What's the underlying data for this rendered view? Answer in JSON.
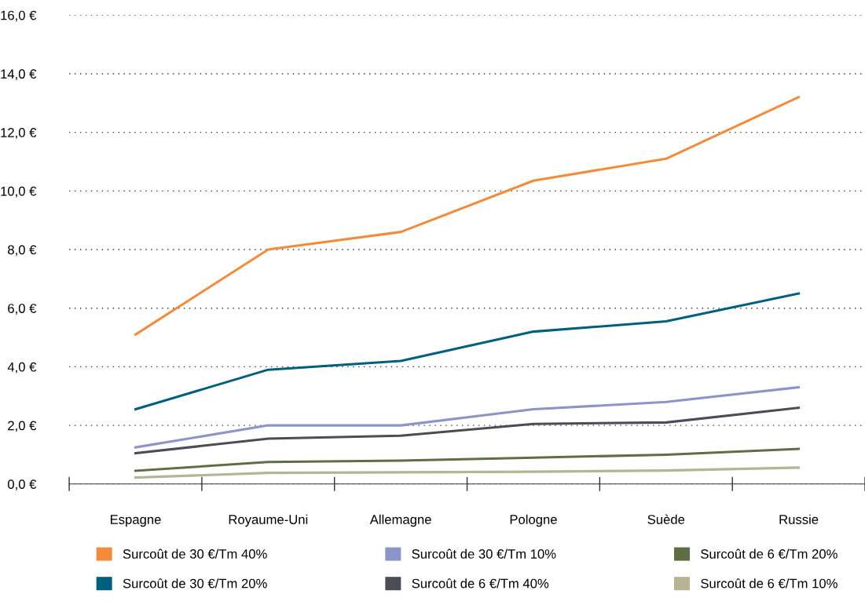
{
  "chart_data": {
    "type": "line",
    "categories": [
      "Espagne",
      "Royaume-Uni",
      "Allemagne",
      "Pologne",
      "Suède",
      "Russie"
    ],
    "series": [
      {
        "name": "Surcoût de 30 €/Tm 40%",
        "color": "#f28c3c",
        "values": [
          5.1,
          8.0,
          8.6,
          10.35,
          11.1,
          13.2
        ]
      },
      {
        "name": "Surcoût de 30 €/Tm 20%",
        "color": "#005e7f",
        "values": [
          2.55,
          3.9,
          4.2,
          5.2,
          5.55,
          6.5
        ]
      },
      {
        "name": "Surcoût de 30 €/Tm 10%",
        "color": "#8c94c8",
        "values": [
          1.25,
          2.0,
          2.0,
          2.55,
          2.8,
          3.3
        ]
      },
      {
        "name": "Surcoût de 6 €/Tm 40%",
        "color": "#4a4d55",
        "values": [
          1.05,
          1.55,
          1.65,
          2.05,
          2.1,
          2.6
        ]
      },
      {
        "name": "Surcoût de 6 €/Tm 20%",
        "color": "#5f6e45",
        "values": [
          0.45,
          0.75,
          0.8,
          0.9,
          1.0,
          1.2
        ]
      },
      {
        "name": "Surcoût de 6 €/Tm 10%",
        "color": "#b5b595",
        "values": [
          0.22,
          0.38,
          0.4,
          0.42,
          0.46,
          0.56
        ]
      }
    ],
    "ylim": [
      0,
      16
    ],
    "yticks": [
      {
        "value": 0,
        "label": "0,0 €"
      },
      {
        "value": 2,
        "label": "2,0 €"
      },
      {
        "value": 4,
        "label": "4,0 €"
      },
      {
        "value": 6,
        "label": "6,0 €"
      },
      {
        "value": 8,
        "label": "8,0 €"
      },
      {
        "value": 10,
        "label": "10,0 €"
      },
      {
        "value": 12,
        "label": "12,0 €"
      },
      {
        "value": 14,
        "label": "14,0 €"
      },
      {
        "value": 16,
        "label": "16,0 €"
      }
    ],
    "grid": "y",
    "legend": "bottom",
    "marker": "none",
    "line_style": "solid"
  }
}
